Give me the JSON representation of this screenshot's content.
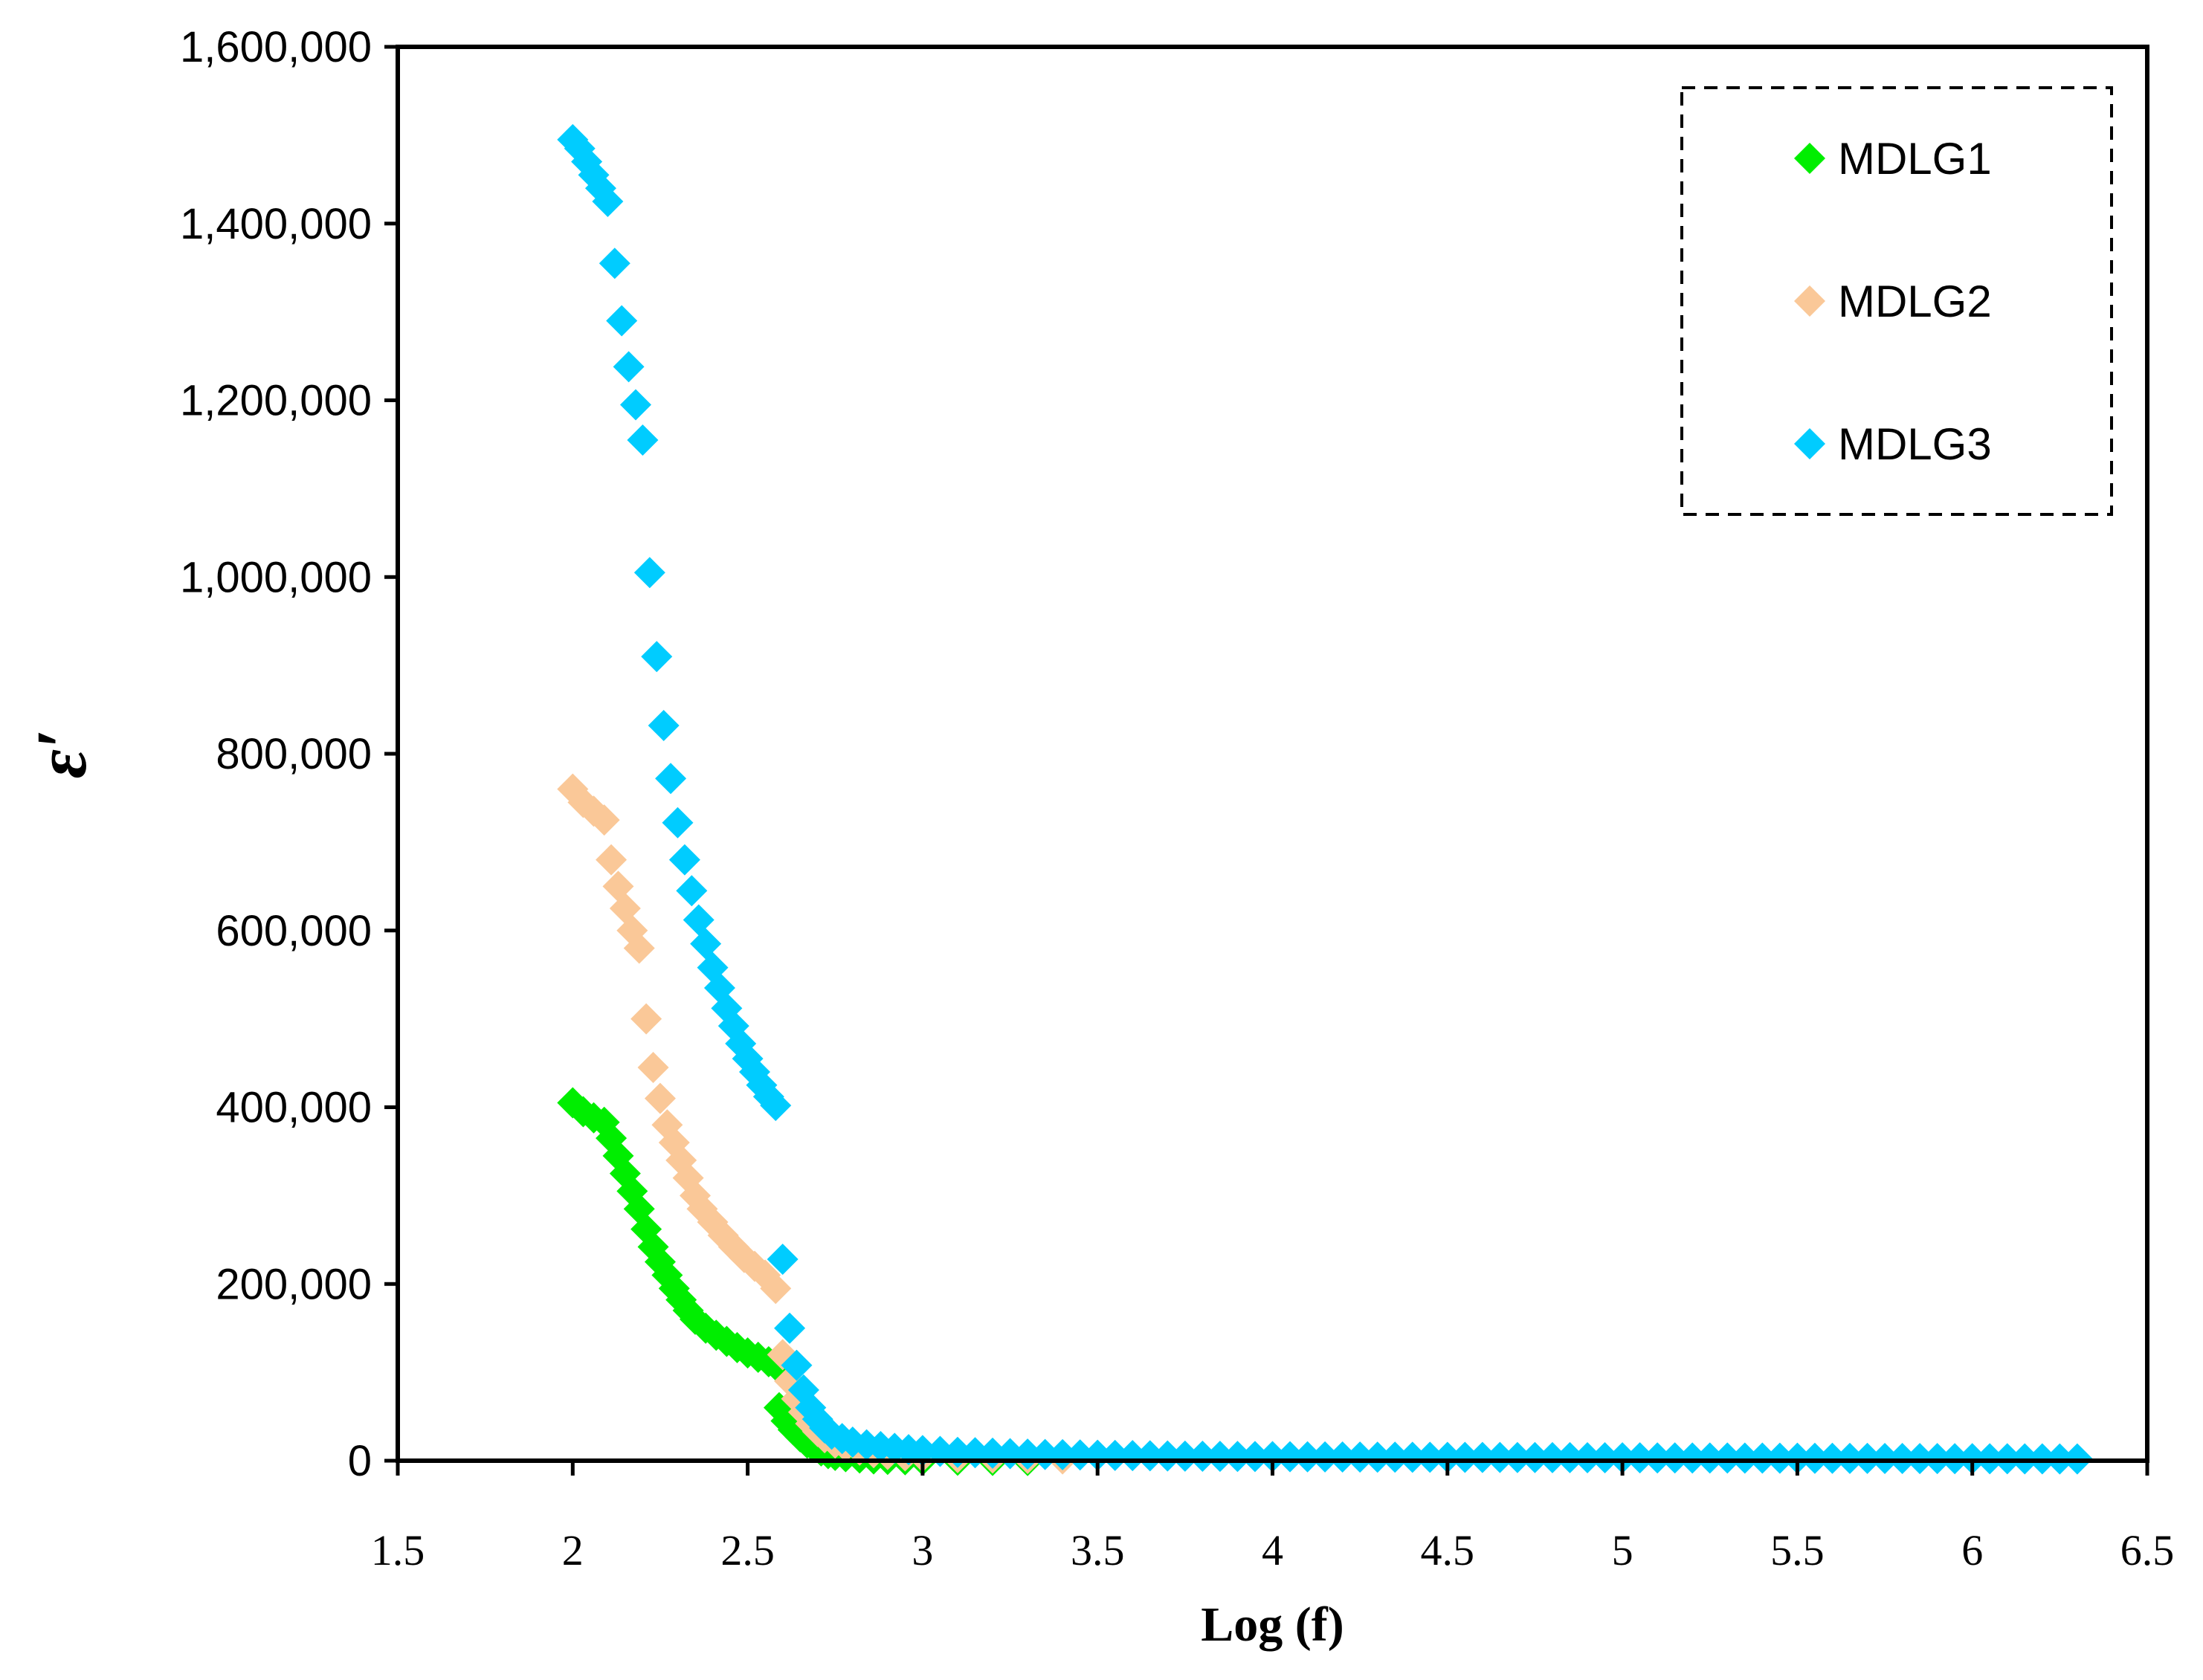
{
  "chart_data": {
    "type": "scatter",
    "title": "",
    "xlabel": "Log (f)",
    "ylabel": "ε′",
    "xlim": [
      1.5,
      6.5
    ],
    "ylim": [
      0,
      1600000
    ],
    "xticks": [
      "1.5",
      "2",
      "2.5",
      "3",
      "3.5",
      "4",
      "4.5",
      "5",
      "5.5",
      "6",
      "6.5"
    ],
    "xtick_values": [
      1.5,
      2,
      2.5,
      3,
      3.5,
      4,
      4.5,
      5,
      5.5,
      6,
      6.5
    ],
    "yticks": [
      "0",
      "200,000",
      "400,000",
      "600,000",
      "800,000",
      "1,000,000",
      "1,200,000",
      "1,400,000",
      "1,600,000"
    ],
    "ytick_values": [
      0,
      200000,
      400000,
      600000,
      800000,
      1000000,
      1200000,
      1400000,
      1600000
    ],
    "grid": false,
    "legend_position": "top-right",
    "marker": "diamond",
    "series": [
      {
        "name": "MDLG1",
        "color": "#00EE00",
        "points": [
          [
            2.0,
            405000
          ],
          [
            2.03,
            395000
          ],
          [
            2.06,
            388000
          ],
          [
            2.09,
            383000
          ],
          [
            2.11,
            365000
          ],
          [
            2.13,
            345000
          ],
          [
            2.15,
            325000
          ],
          [
            2.17,
            305000
          ],
          [
            2.19,
            285000
          ],
          [
            2.21,
            262000
          ],
          [
            2.23,
            242000
          ],
          [
            2.25,
            225000
          ],
          [
            2.27,
            210000
          ],
          [
            2.29,
            195000
          ],
          [
            2.31,
            182000
          ],
          [
            2.33,
            170000
          ],
          [
            2.35,
            160000
          ],
          [
            2.38,
            150000
          ],
          [
            2.41,
            142000
          ],
          [
            2.44,
            135000
          ],
          [
            2.47,
            128000
          ],
          [
            2.5,
            122000
          ],
          [
            2.53,
            117000
          ],
          [
            2.56,
            112000
          ],
          [
            2.58,
            108000
          ],
          [
            2.59,
            60000
          ],
          [
            2.61,
            45000
          ],
          [
            2.63,
            35000
          ],
          [
            2.65,
            27000
          ],
          [
            2.67,
            20000
          ],
          [
            2.69,
            15000
          ],
          [
            2.71,
            11000
          ],
          [
            2.73,
            8000
          ],
          [
            2.75,
            6000
          ],
          [
            2.78,
            4500
          ],
          [
            2.82,
            3000
          ],
          [
            2.86,
            2000
          ],
          [
            2.9,
            1500
          ],
          [
            2.95,
            1000
          ],
          [
            3.0,
            800
          ],
          [
            3.1,
            500
          ],
          [
            3.2,
            300
          ],
          [
            3.3,
            200
          ]
        ]
      },
      {
        "name": "MDLG2",
        "color": "#FAC898",
        "points": [
          [
            2.0,
            760000
          ],
          [
            2.03,
            745000
          ],
          [
            2.06,
            735000
          ],
          [
            2.09,
            725000
          ],
          [
            2.11,
            680000
          ],
          [
            2.13,
            650000
          ],
          [
            2.15,
            625000
          ],
          [
            2.17,
            600000
          ],
          [
            2.19,
            580000
          ],
          [
            2.21,
            500000
          ],
          [
            2.23,
            445000
          ],
          [
            2.25,
            410000
          ],
          [
            2.27,
            380000
          ],
          [
            2.29,
            360000
          ],
          [
            2.31,
            340000
          ],
          [
            2.33,
            320000
          ],
          [
            2.35,
            300000
          ],
          [
            2.37,
            285000
          ],
          [
            2.4,
            270000
          ],
          [
            2.43,
            255000
          ],
          [
            2.46,
            242000
          ],
          [
            2.49,
            230000
          ],
          [
            2.52,
            220000
          ],
          [
            2.55,
            210000
          ],
          [
            2.58,
            195000
          ],
          [
            2.6,
            120000
          ],
          [
            2.62,
            90000
          ],
          [
            2.64,
            70000
          ],
          [
            2.66,
            55000
          ],
          [
            2.68,
            42000
          ],
          [
            2.7,
            33000
          ],
          [
            2.72,
            26000
          ],
          [
            2.75,
            20000
          ],
          [
            2.78,
            16000
          ],
          [
            2.82,
            12000
          ],
          [
            2.86,
            9000
          ],
          [
            2.9,
            7000
          ],
          [
            2.95,
            5500
          ],
          [
            3.0,
            4500
          ],
          [
            3.1,
            3500
          ],
          [
            3.2,
            3000
          ],
          [
            3.3,
            2500
          ],
          [
            3.4,
            2000
          ]
        ]
      },
      {
        "name": "MDLG3",
        "color": "#00CCFF",
        "points": [
          [
            2.0,
            1495000
          ],
          [
            2.02,
            1485000
          ],
          [
            2.04,
            1470000
          ],
          [
            2.06,
            1455000
          ],
          [
            2.08,
            1440000
          ],
          [
            2.1,
            1425000
          ],
          [
            2.12,
            1355000
          ],
          [
            2.14,
            1290000
          ],
          [
            2.16,
            1238000
          ],
          [
            2.18,
            1195000
          ],
          [
            2.2,
            1155000
          ],
          [
            2.22,
            1005000
          ],
          [
            2.24,
            910000
          ],
          [
            2.26,
            832000
          ],
          [
            2.28,
            772000
          ],
          [
            2.3,
            722000
          ],
          [
            2.32,
            680000
          ],
          [
            2.34,
            645000
          ],
          [
            2.36,
            612000
          ],
          [
            2.38,
            585000
          ],
          [
            2.4,
            558000
          ],
          [
            2.42,
            535000
          ],
          [
            2.44,
            512000
          ],
          [
            2.46,
            492000
          ],
          [
            2.48,
            472000
          ],
          [
            2.5,
            455000
          ],
          [
            2.52,
            440000
          ],
          [
            2.54,
            425000
          ],
          [
            2.56,
            412000
          ],
          [
            2.58,
            402000
          ],
          [
            2.6,
            228000
          ],
          [
            2.62,
            150000
          ],
          [
            2.64,
            108000
          ],
          [
            2.66,
            80000
          ],
          [
            2.68,
            60000
          ],
          [
            2.7,
            47000
          ],
          [
            2.72,
            37000
          ],
          [
            2.74,
            30000
          ],
          [
            2.77,
            25000
          ],
          [
            2.8,
            21000
          ],
          [
            2.84,
            18000
          ],
          [
            2.88,
            16000
          ],
          [
            2.92,
            14000
          ],
          [
            2.96,
            12500
          ],
          [
            3.0,
            11500
          ],
          [
            3.05,
            10500
          ],
          [
            3.1,
            9500
          ],
          [
            3.15,
            9000
          ],
          [
            3.2,
            8500
          ],
          [
            3.25,
            8000
          ],
          [
            3.3,
            7500
          ],
          [
            3.35,
            7000
          ],
          [
            3.4,
            6800
          ],
          [
            3.45,
            6500
          ],
          [
            3.5,
            6200
          ],
          [
            3.55,
            6000
          ],
          [
            3.6,
            5800
          ],
          [
            3.65,
            5600
          ],
          [
            3.7,
            5400
          ],
          [
            3.75,
            5200
          ],
          [
            3.8,
            5000
          ],
          [
            3.85,
            4900
          ],
          [
            3.9,
            4800
          ],
          [
            3.95,
            4700
          ],
          [
            4.0,
            4600
          ],
          [
            4.05,
            4500
          ],
          [
            4.1,
            4400
          ],
          [
            4.15,
            4300
          ],
          [
            4.2,
            4200
          ],
          [
            4.25,
            4100
          ],
          [
            4.3,
            4000
          ],
          [
            4.35,
            3950
          ],
          [
            4.4,
            3900
          ],
          [
            4.45,
            3850
          ],
          [
            4.5,
            3800
          ],
          [
            4.55,
            3750
          ],
          [
            4.6,
            3700
          ],
          [
            4.65,
            3650
          ],
          [
            4.7,
            3600
          ],
          [
            4.75,
            3550
          ],
          [
            4.8,
            3500
          ],
          [
            4.85,
            3450
          ],
          [
            4.9,
            3400
          ],
          [
            4.95,
            3350
          ],
          [
            5.0,
            3300
          ],
          [
            5.05,
            3250
          ],
          [
            5.1,
            3200
          ],
          [
            5.15,
            3150
          ],
          [
            5.2,
            3100
          ],
          [
            5.25,
            3050
          ],
          [
            5.3,
            3000
          ],
          [
            5.35,
            2950
          ],
          [
            5.4,
            2900
          ],
          [
            5.45,
            2850
          ],
          [
            5.5,
            2800
          ],
          [
            5.55,
            2750
          ],
          [
            5.6,
            2700
          ],
          [
            5.65,
            2650
          ],
          [
            5.7,
            2600
          ],
          [
            5.75,
            2550
          ],
          [
            5.8,
            2500
          ],
          [
            5.85,
            2450
          ],
          [
            5.9,
            2400
          ],
          [
            5.95,
            2350
          ],
          [
            6.0,
            2300
          ],
          [
            6.05,
            2250
          ],
          [
            6.1,
            2200
          ],
          [
            6.15,
            2150
          ],
          [
            6.2,
            2100
          ],
          [
            6.25,
            2050
          ],
          [
            6.3,
            2000
          ]
        ]
      }
    ]
  }
}
